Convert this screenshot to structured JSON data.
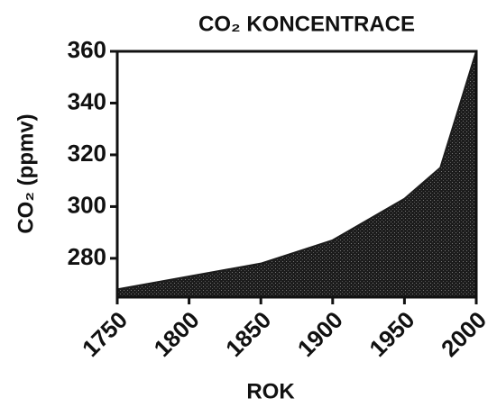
{
  "chart_data": {
    "type": "area",
    "title": "CO₂ KONCENTRACE",
    "x_label": "ROK",
    "y_label": "CO₂ (ppmv)",
    "x": [
      1750,
      1800,
      1850,
      1900,
      1950,
      1975,
      2000
    ],
    "values": [
      268,
      273,
      278,
      287,
      303,
      315,
      360
    ],
    "color": "#1c1c1c",
    "xlim": [
      1750,
      2000
    ],
    "xticks": [
      1750,
      1800,
      1850,
      1900,
      1950,
      2000
    ],
    "ylim": [
      265,
      360
    ],
    "yticks": [
      280,
      300,
      320,
      340,
      360
    ],
    "grid": false
  }
}
